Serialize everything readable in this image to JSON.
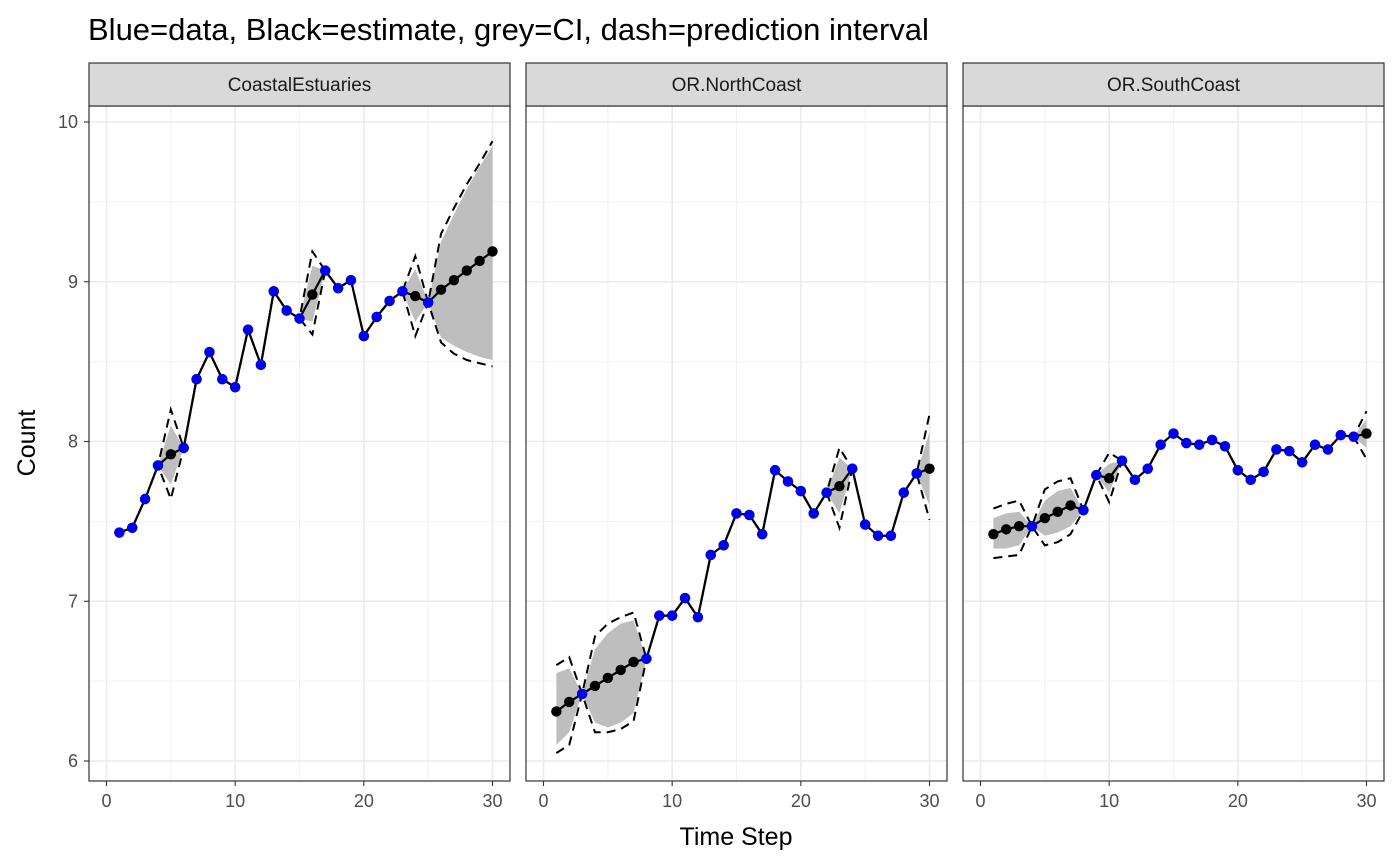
{
  "chart_data": {
    "type": "line",
    "title": "Blue=data, Black=estimate, grey=CI, dash=prediction interval",
    "xlabel": "Time Step",
    "ylabel": "Count",
    "xlim": [
      0,
      30
    ],
    "ylim": [
      6,
      10
    ],
    "x_ticks": [
      "0",
      "10",
      "20",
      "30"
    ],
    "y_ticks": [
      "6",
      "7",
      "8",
      "9",
      "10"
    ],
    "grid": true,
    "colors": {
      "data": "#0000ee",
      "estimate": "#000000",
      "ci": "#bebebe",
      "strip": "#d9d9d9"
    },
    "panels": [
      {
        "name": "CoastalEstuaries",
        "x": [
          1,
          2,
          3,
          4,
          5,
          6,
          7,
          8,
          9,
          10,
          11,
          12,
          13,
          14,
          15,
          16,
          17,
          18,
          19,
          20,
          21,
          22,
          23,
          24,
          25,
          26,
          27,
          28,
          29,
          30
        ],
        "estimate": [
          7.43,
          7.46,
          7.64,
          7.85,
          7.92,
          7.96,
          8.39,
          8.56,
          8.39,
          8.34,
          8.7,
          8.48,
          8.94,
          8.82,
          8.77,
          8.92,
          9.07,
          8.96,
          9.01,
          8.66,
          8.78,
          8.88,
          8.94,
          8.91,
          8.87,
          8.95,
          9.01,
          9.07,
          9.13,
          9.19
        ],
        "data": [
          7.43,
          7.46,
          7.64,
          7.85,
          null,
          7.96,
          8.39,
          8.56,
          8.39,
          8.34,
          8.7,
          8.48,
          8.94,
          8.82,
          8.77,
          null,
          9.07,
          8.96,
          9.01,
          8.66,
          8.78,
          8.88,
          8.94,
          null,
          8.87,
          null,
          null,
          null,
          null,
          null
        ],
        "ci_lower": [
          7.43,
          7.46,
          7.64,
          7.85,
          7.73,
          7.96,
          8.39,
          8.56,
          8.39,
          8.34,
          8.7,
          8.48,
          8.94,
          8.82,
          8.77,
          8.75,
          9.07,
          8.96,
          9.01,
          8.66,
          8.78,
          8.88,
          8.94,
          8.75,
          8.87,
          8.65,
          8.6,
          8.56,
          8.53,
          8.51
        ],
        "ci_upper": [
          7.43,
          7.46,
          7.64,
          7.85,
          8.1,
          7.96,
          8.39,
          8.56,
          8.39,
          8.34,
          8.7,
          8.48,
          8.94,
          8.82,
          8.77,
          9.1,
          9.07,
          8.96,
          9.01,
          8.66,
          8.78,
          8.88,
          8.94,
          9.08,
          8.87,
          9.25,
          9.42,
          9.58,
          9.72,
          9.85
        ],
        "pi_lower": [
          7.43,
          7.46,
          7.64,
          7.85,
          7.64,
          7.96,
          8.39,
          8.56,
          8.39,
          8.34,
          8.7,
          8.48,
          8.94,
          8.82,
          8.77,
          8.67,
          9.07,
          8.96,
          9.01,
          8.66,
          8.78,
          8.88,
          8.94,
          8.66,
          8.87,
          8.62,
          8.55,
          8.51,
          8.49,
          8.47
        ],
        "pi_upper": [
          7.43,
          7.46,
          7.64,
          7.85,
          8.2,
          7.96,
          8.39,
          8.56,
          8.39,
          8.34,
          8.7,
          8.48,
          8.94,
          8.82,
          8.77,
          9.19,
          9.07,
          8.96,
          9.01,
          8.66,
          8.78,
          8.88,
          8.94,
          9.16,
          8.87,
          9.3,
          9.46,
          9.61,
          9.74,
          9.88
        ]
      },
      {
        "name": "OR.NorthCoast",
        "x": [
          1,
          2,
          3,
          4,
          5,
          6,
          7,
          8,
          9,
          10,
          11,
          12,
          13,
          14,
          15,
          16,
          17,
          18,
          19,
          20,
          21,
          22,
          23,
          24,
          25,
          26,
          27,
          28,
          29,
          30
        ],
        "estimate": [
          6.31,
          6.37,
          6.42,
          6.47,
          6.52,
          6.57,
          6.62,
          6.64,
          6.91,
          6.91,
          7.02,
          6.9,
          7.29,
          7.35,
          7.55,
          7.54,
          7.42,
          7.82,
          7.75,
          7.69,
          7.55,
          7.68,
          7.72,
          7.83,
          7.48,
          7.41,
          7.41,
          7.68,
          7.8,
          7.83
        ],
        "data": [
          null,
          null,
          6.42,
          null,
          null,
          null,
          null,
          6.64,
          6.91,
          6.91,
          7.02,
          6.9,
          7.29,
          7.35,
          7.55,
          7.54,
          7.42,
          7.82,
          7.75,
          7.69,
          7.55,
          7.68,
          null,
          7.83,
          7.48,
          7.41,
          7.41,
          7.68,
          7.8,
          null
        ],
        "ci_lower": [
          6.1,
          6.18,
          6.42,
          6.24,
          6.21,
          6.24,
          6.3,
          6.64,
          6.91,
          6.91,
          7.02,
          6.9,
          7.29,
          7.35,
          7.55,
          7.54,
          7.42,
          7.82,
          7.75,
          7.69,
          7.55,
          7.68,
          7.55,
          7.83,
          7.48,
          7.41,
          7.41,
          7.68,
          7.8,
          7.6
        ],
        "ci_upper": [
          6.55,
          6.58,
          6.42,
          6.7,
          6.8,
          6.86,
          6.88,
          6.64,
          6.91,
          6.91,
          7.02,
          6.9,
          7.29,
          7.35,
          7.55,
          7.54,
          7.42,
          7.82,
          7.75,
          7.69,
          7.55,
          7.68,
          7.9,
          7.83,
          7.48,
          7.41,
          7.41,
          7.68,
          7.8,
          8.06
        ],
        "pi_lower": [
          6.05,
          6.1,
          6.42,
          6.18,
          6.18,
          6.2,
          6.25,
          6.64,
          6.91,
          6.91,
          7.02,
          6.9,
          7.29,
          7.35,
          7.55,
          7.54,
          7.42,
          7.82,
          7.75,
          7.69,
          7.55,
          7.68,
          7.46,
          7.83,
          7.48,
          7.41,
          7.41,
          7.68,
          7.8,
          7.51
        ],
        "pi_upper": [
          6.6,
          6.65,
          6.42,
          6.78,
          6.86,
          6.9,
          6.93,
          6.64,
          6.91,
          6.91,
          7.02,
          6.9,
          7.29,
          7.35,
          7.55,
          7.54,
          7.42,
          7.82,
          7.75,
          7.69,
          7.55,
          7.68,
          7.96,
          7.83,
          7.48,
          7.41,
          7.41,
          7.68,
          7.8,
          8.17
        ]
      },
      {
        "name": "OR.SouthCoast",
        "x": [
          1,
          2,
          3,
          4,
          5,
          6,
          7,
          8,
          9,
          10,
          11,
          12,
          13,
          14,
          15,
          16,
          17,
          18,
          19,
          20,
          21,
          22,
          23,
          24,
          25,
          26,
          27,
          28,
          29,
          30
        ],
        "estimate": [
          7.42,
          7.45,
          7.47,
          7.47,
          7.52,
          7.56,
          7.6,
          7.57,
          7.79,
          7.77,
          7.88,
          7.76,
          7.83,
          7.98,
          8.05,
          7.99,
          7.98,
          8.01,
          7.97,
          7.82,
          7.76,
          7.81,
          7.95,
          7.94,
          7.87,
          7.98,
          7.95,
          8.04,
          8.03,
          8.05
        ],
        "data": [
          null,
          null,
          null,
          7.47,
          null,
          null,
          null,
          7.57,
          7.79,
          null,
          7.88,
          7.76,
          7.83,
          7.98,
          8.05,
          7.99,
          7.98,
          8.01,
          7.97,
          7.82,
          7.76,
          7.81,
          7.95,
          7.94,
          7.87,
          7.98,
          7.95,
          8.04,
          8.03,
          null
        ],
        "ci_lower": [
          7.33,
          7.33,
          7.35,
          7.47,
          7.41,
          7.43,
          7.47,
          7.57,
          7.79,
          7.68,
          7.88,
          7.76,
          7.83,
          7.98,
          8.05,
          7.99,
          7.98,
          8.01,
          7.97,
          7.82,
          7.76,
          7.81,
          7.95,
          7.94,
          7.87,
          7.98,
          7.95,
          8.04,
          8.03,
          7.96
        ],
        "ci_upper": [
          7.52,
          7.55,
          7.56,
          7.47,
          7.63,
          7.69,
          7.71,
          7.57,
          7.79,
          7.86,
          7.88,
          7.76,
          7.83,
          7.98,
          8.05,
          7.99,
          7.98,
          8.01,
          7.97,
          7.82,
          7.76,
          7.81,
          7.95,
          7.94,
          7.87,
          7.98,
          7.95,
          8.04,
          8.03,
          8.14
        ],
        "pi_lower": [
          7.27,
          7.28,
          7.29,
          7.47,
          7.35,
          7.37,
          7.42,
          7.57,
          7.79,
          7.62,
          7.88,
          7.76,
          7.83,
          7.98,
          8.05,
          7.99,
          7.98,
          8.01,
          7.97,
          7.82,
          7.76,
          7.81,
          7.95,
          7.94,
          7.87,
          7.98,
          7.95,
          8.04,
          8.03,
          7.89
        ],
        "pi_upper": [
          7.58,
          7.61,
          7.63,
          7.47,
          7.7,
          7.75,
          7.77,
          7.57,
          7.79,
          7.93,
          7.88,
          7.76,
          7.83,
          7.98,
          8.05,
          7.99,
          7.98,
          8.01,
          7.97,
          7.82,
          7.76,
          7.81,
          7.95,
          7.94,
          7.87,
          7.98,
          7.95,
          8.04,
          8.03,
          8.19
        ]
      }
    ]
  }
}
